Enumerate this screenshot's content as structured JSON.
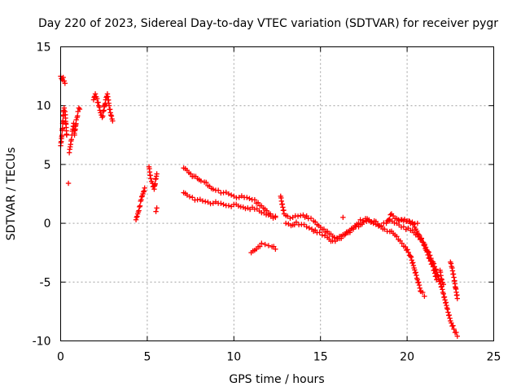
{
  "chart_data": {
    "type": "scatter",
    "title": "Day 220 of 2023, Sidereal Day-to-day VTEC variation (SDTVAR) for receiver pygr",
    "xlabel": "GPS time / hours",
    "ylabel": "SDTVAR / TECUs",
    "xlim": [
      0,
      25
    ],
    "ylim": [
      -10,
      15
    ],
    "xticks": [
      0,
      5,
      10,
      15,
      20,
      25
    ],
    "yticks": [
      -10,
      -5,
      0,
      5,
      10,
      15
    ],
    "grid": true,
    "marker": "+",
    "color": "#ff0000",
    "series_segments": [
      {
        "name": "seg1",
        "x": [
          0.0,
          0.05,
          0.1,
          0.15,
          0.2,
          0.25
        ],
        "y": [
          12.5,
          12.3,
          12.2,
          12.4,
          12.1,
          11.9
        ]
      },
      {
        "name": "seg2",
        "x": [
          0.0,
          0.05,
          0.1,
          0.15,
          0.2,
          0.25,
          0.3,
          0.35
        ],
        "y": [
          6.6,
          7.2,
          8.0,
          9.2,
          9.8,
          9.5,
          8.5,
          7.5
        ]
      },
      {
        "name": "seg3",
        "x": [
          0.5,
          0.55,
          0.6,
          0.65,
          0.7,
          0.75,
          0.8,
          0.85,
          0.9,
          0.95,
          1.0,
          1.05,
          1.1
        ],
        "y": [
          6.0,
          6.5,
          7.0,
          7.5,
          8.0,
          8.5,
          7.5,
          8.0,
          8.8,
          9.0,
          9.5,
          9.8,
          9.7
        ]
      },
      {
        "name": "seg4",
        "x": [
          0.45
        ],
        "y": [
          3.4
        ]
      },
      {
        "name": "seg5",
        "x": [
          1.9,
          2.0,
          2.1,
          2.2,
          2.3,
          2.4,
          2.5,
          2.6,
          2.7,
          2.8,
          2.9,
          3.0
        ],
        "y": [
          10.5,
          11.0,
          10.6,
          10.0,
          9.4,
          9.0,
          9.6,
          10.5,
          11.0,
          10.0,
          9.2,
          8.7
        ]
      },
      {
        "name": "seg6",
        "x": [
          4.35,
          4.45,
          4.55,
          4.65,
          4.75,
          4.85
        ],
        "y": [
          0.3,
          0.8,
          1.4,
          2.0,
          2.5,
          3.0
        ]
      },
      {
        "name": "seg7",
        "x": [
          5.1,
          5.2,
          5.3,
          5.4,
          5.5,
          5.55
        ],
        "y": [
          4.8,
          3.8,
          3.4,
          2.9,
          3.8,
          4.2
        ]
      },
      {
        "name": "seg8",
        "x": [
          5.5,
          5.55
        ],
        "y": [
          1.0,
          1.3
        ]
      },
      {
        "name": "seg9",
        "x": [
          7.1,
          7.3,
          7.5,
          7.7,
          7.9,
          8.1,
          8.3,
          8.5,
          8.8,
          9.1,
          9.4,
          9.7,
          10.0,
          10.3,
          10.6,
          10.9,
          11.2,
          11.5,
          11.8,
          12.1,
          12.4
        ],
        "y": [
          4.7,
          4.5,
          4.2,
          4.0,
          3.8,
          3.6,
          3.5,
          3.2,
          2.9,
          2.8,
          2.6,
          2.5,
          2.3,
          2.2,
          2.2,
          2.1,
          2.0,
          1.5,
          1.2,
          0.8,
          0.6
        ]
      },
      {
        "name": "seg10",
        "x": [
          7.1,
          7.3,
          7.6,
          7.9,
          8.2,
          8.5,
          8.8,
          9.1,
          9.4,
          9.7,
          10.0,
          10.4,
          10.8,
          11.2,
          11.6,
          12.0,
          12.4
        ],
        "y": [
          2.6,
          2.4,
          2.2,
          2.0,
          1.9,
          1.8,
          1.7,
          1.7,
          1.6,
          1.5,
          1.6,
          1.4,
          1.3,
          1.2,
          0.9,
          0.7,
          0.5
        ]
      },
      {
        "name": "seg11",
        "x": [
          11.0,
          11.2,
          11.4,
          11.6,
          11.8,
          12.0,
          12.2,
          12.4
        ],
        "y": [
          -2.5,
          -2.3,
          -2.0,
          -1.7,
          -1.8,
          -1.9,
          -2.0,
          -2.2
        ]
      },
      {
        "name": "seg12",
        "x": [
          12.7,
          12.9,
          13.1,
          13.4,
          13.7,
          14.0,
          14.3,
          14.6,
          14.9,
          15.2,
          15.5,
          15.8,
          16.1,
          16.4,
          16.7,
          17.0,
          17.3,
          17.6,
          17.9,
          18.2,
          18.5,
          18.8,
          19.1,
          19.4,
          19.7,
          20.0,
          20.3,
          20.6
        ],
        "y": [
          2.3,
          0.8,
          0.6,
          0.5,
          0.6,
          0.7,
          0.4,
          0.2,
          -0.2,
          -0.5,
          -0.9,
          -1.2,
          -1.3,
          -1.0,
          -0.6,
          -0.2,
          0.3,
          0.4,
          0.1,
          -0.1,
          -0.2,
          0.0,
          0.8,
          0.4,
          0.3,
          0.2,
          0.1,
          0.0
        ]
      },
      {
        "name": "seg13",
        "x": [
          13.0,
          13.3,
          13.6,
          13.9,
          14.2,
          14.5,
          14.8,
          15.1,
          15.4,
          15.7,
          16.0,
          16.3,
          16.6,
          16.9,
          17.2,
          17.5,
          17.8,
          18.1,
          18.4,
          18.7,
          19.0,
          19.3,
          19.6,
          19.9,
          20.2,
          20.4,
          20.6,
          20.8,
          21.0
        ],
        "y": [
          0.0,
          -0.2,
          0.1,
          -0.1,
          -0.3,
          -0.5,
          -0.8,
          -1.0,
          -1.2,
          -1.5,
          -1.3,
          -1.0,
          -0.8,
          -0.5,
          -0.3,
          0.1,
          0.3,
          0.2,
          -0.2,
          -0.5,
          -0.7,
          -1.0,
          -1.5,
          -2.0,
          -2.8,
          -3.8,
          -4.8,
          -5.8,
          -6.2
        ]
      },
      {
        "name": "seg14",
        "x": [
          16.3
        ],
        "y": [
          0.5
        ]
      },
      {
        "name": "seg15",
        "x": [
          19.0,
          19.4,
          19.8,
          20.2,
          20.6,
          20.9,
          21.2,
          21.5,
          21.8,
          22.1,
          22.3,
          22.5,
          22.7,
          22.9
        ],
        "y": [
          0.2,
          0.0,
          -0.3,
          -0.6,
          -1.0,
          -1.6,
          -2.4,
          -3.3,
          -4.5,
          -6.0,
          -7.2,
          -8.3,
          -9.0,
          -9.6
        ]
      },
      {
        "name": "seg16",
        "x": [
          19.5,
          19.8,
          20.1,
          20.3,
          20.5,
          20.7,
          20.9,
          21.1,
          21.3,
          21.5,
          21.7
        ],
        "y": [
          0.3,
          0.2,
          0.2,
          0.0,
          -0.5,
          -1.0,
          -1.6,
          -2.3,
          -3.0,
          -3.7,
          -4.8
        ]
      },
      {
        "name": "seg17",
        "x": [
          21.9,
          22.0,
          22.1
        ],
        "y": [
          -4.0,
          -4.8,
          -5.2
        ]
      },
      {
        "name": "seg18",
        "x": [
          22.5,
          22.6,
          22.7,
          22.8,
          22.9
        ],
        "y": [
          -3.3,
          -3.8,
          -4.6,
          -5.5,
          -6.4
        ]
      }
    ]
  }
}
